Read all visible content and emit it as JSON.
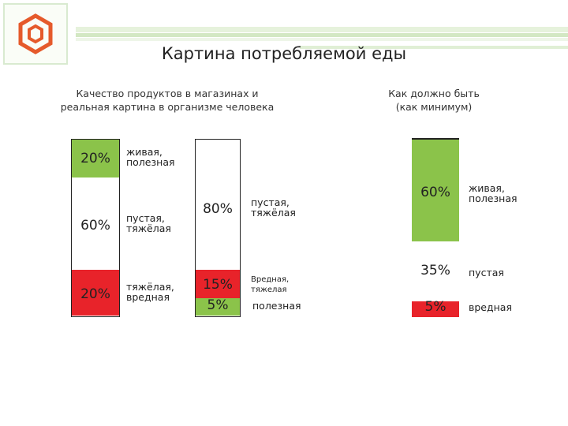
{
  "title": "Картина потребляемой еды",
  "left_heading": [
    "Качество продуктов в магазинах и",
    "реальная картина в организме человека"
  ],
  "right_heading": [
    "Как должно быть",
    "(как минимум)"
  ],
  "colors": {
    "healthy": "#8bc34a",
    "empty": "#ffffff",
    "harmful": "#e8232a",
    "accent_green": "#d3e8c3"
  },
  "columns": [
    {
      "segments": [
        {
          "pct": "20%",
          "label": [
            "живая,",
            "полезная"
          ],
          "color": "healthy"
        },
        {
          "pct": "60%",
          "label": [
            "пустая,",
            "тяжёлая"
          ],
          "color": "empty"
        },
        {
          "pct": "20%",
          "label": [
            "тяжёлая,",
            "вредная"
          ],
          "color": "harmful"
        }
      ]
    },
    {
      "segments": [
        {
          "pct": "80%",
          "label": [
            "пустая,",
            "тяжёлая"
          ],
          "color": "empty"
        },
        {
          "pct": "15%",
          "label": [
            "Вредная,",
            "тяжелая"
          ],
          "color": "harmful"
        },
        {
          "pct": "5%",
          "label": [
            "полезная"
          ],
          "color": "healthy"
        }
      ]
    },
    {
      "segments": [
        {
          "pct": "60%",
          "label": [
            "живая,",
            "полезная"
          ],
          "color": "healthy"
        },
        {
          "pct": "35%",
          "label": [
            "пустая"
          ],
          "color": "empty"
        },
        {
          "pct": "5%",
          "label": [
            "вредная"
          ],
          "color": "harmful"
        }
      ]
    }
  ]
}
